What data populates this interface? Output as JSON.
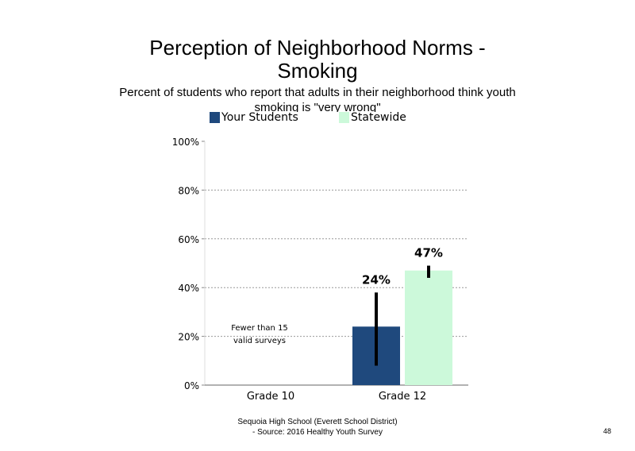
{
  "page": {
    "title_line1": "Perception of Neighborhood Norms -",
    "title_line2": "Smoking",
    "subtitle": "Percent of students who report that adults in their neighborhood think youth smoking is \"very wrong\"",
    "footer_line1": "Sequoia High School (Everett School District)",
    "footer_line2": "- Source: 2016 Healthy Youth Survey",
    "page_number": "48"
  },
  "chart_data": {
    "type": "bar",
    "categories": [
      "Grade 10",
      "Grade 12"
    ],
    "series": [
      {
        "name": "Your Students",
        "color": "#1f497d",
        "values": [
          null,
          24
        ],
        "labels": [
          "",
          "24%"
        ],
        "error": [
          null,
          [
            8,
            38
          ]
        ]
      },
      {
        "name": "Statewide",
        "color": "#ccf9da",
        "values": [
          null,
          47
        ],
        "labels": [
          "",
          "47%"
        ],
        "error": [
          null,
          [
            44,
            49
          ]
        ]
      }
    ],
    "ylim": [
      0,
      100
    ],
    "yticks": [
      "0%",
      "20%",
      "40%",
      "60%",
      "80%",
      "100%"
    ],
    "ytick_values": [
      0,
      20,
      40,
      60,
      80,
      100
    ],
    "grid": true,
    "legend": "top",
    "annotations": [
      {
        "category": "Grade 10",
        "lines": [
          "Fewer than 15",
          "valid surveys"
        ]
      }
    ]
  }
}
